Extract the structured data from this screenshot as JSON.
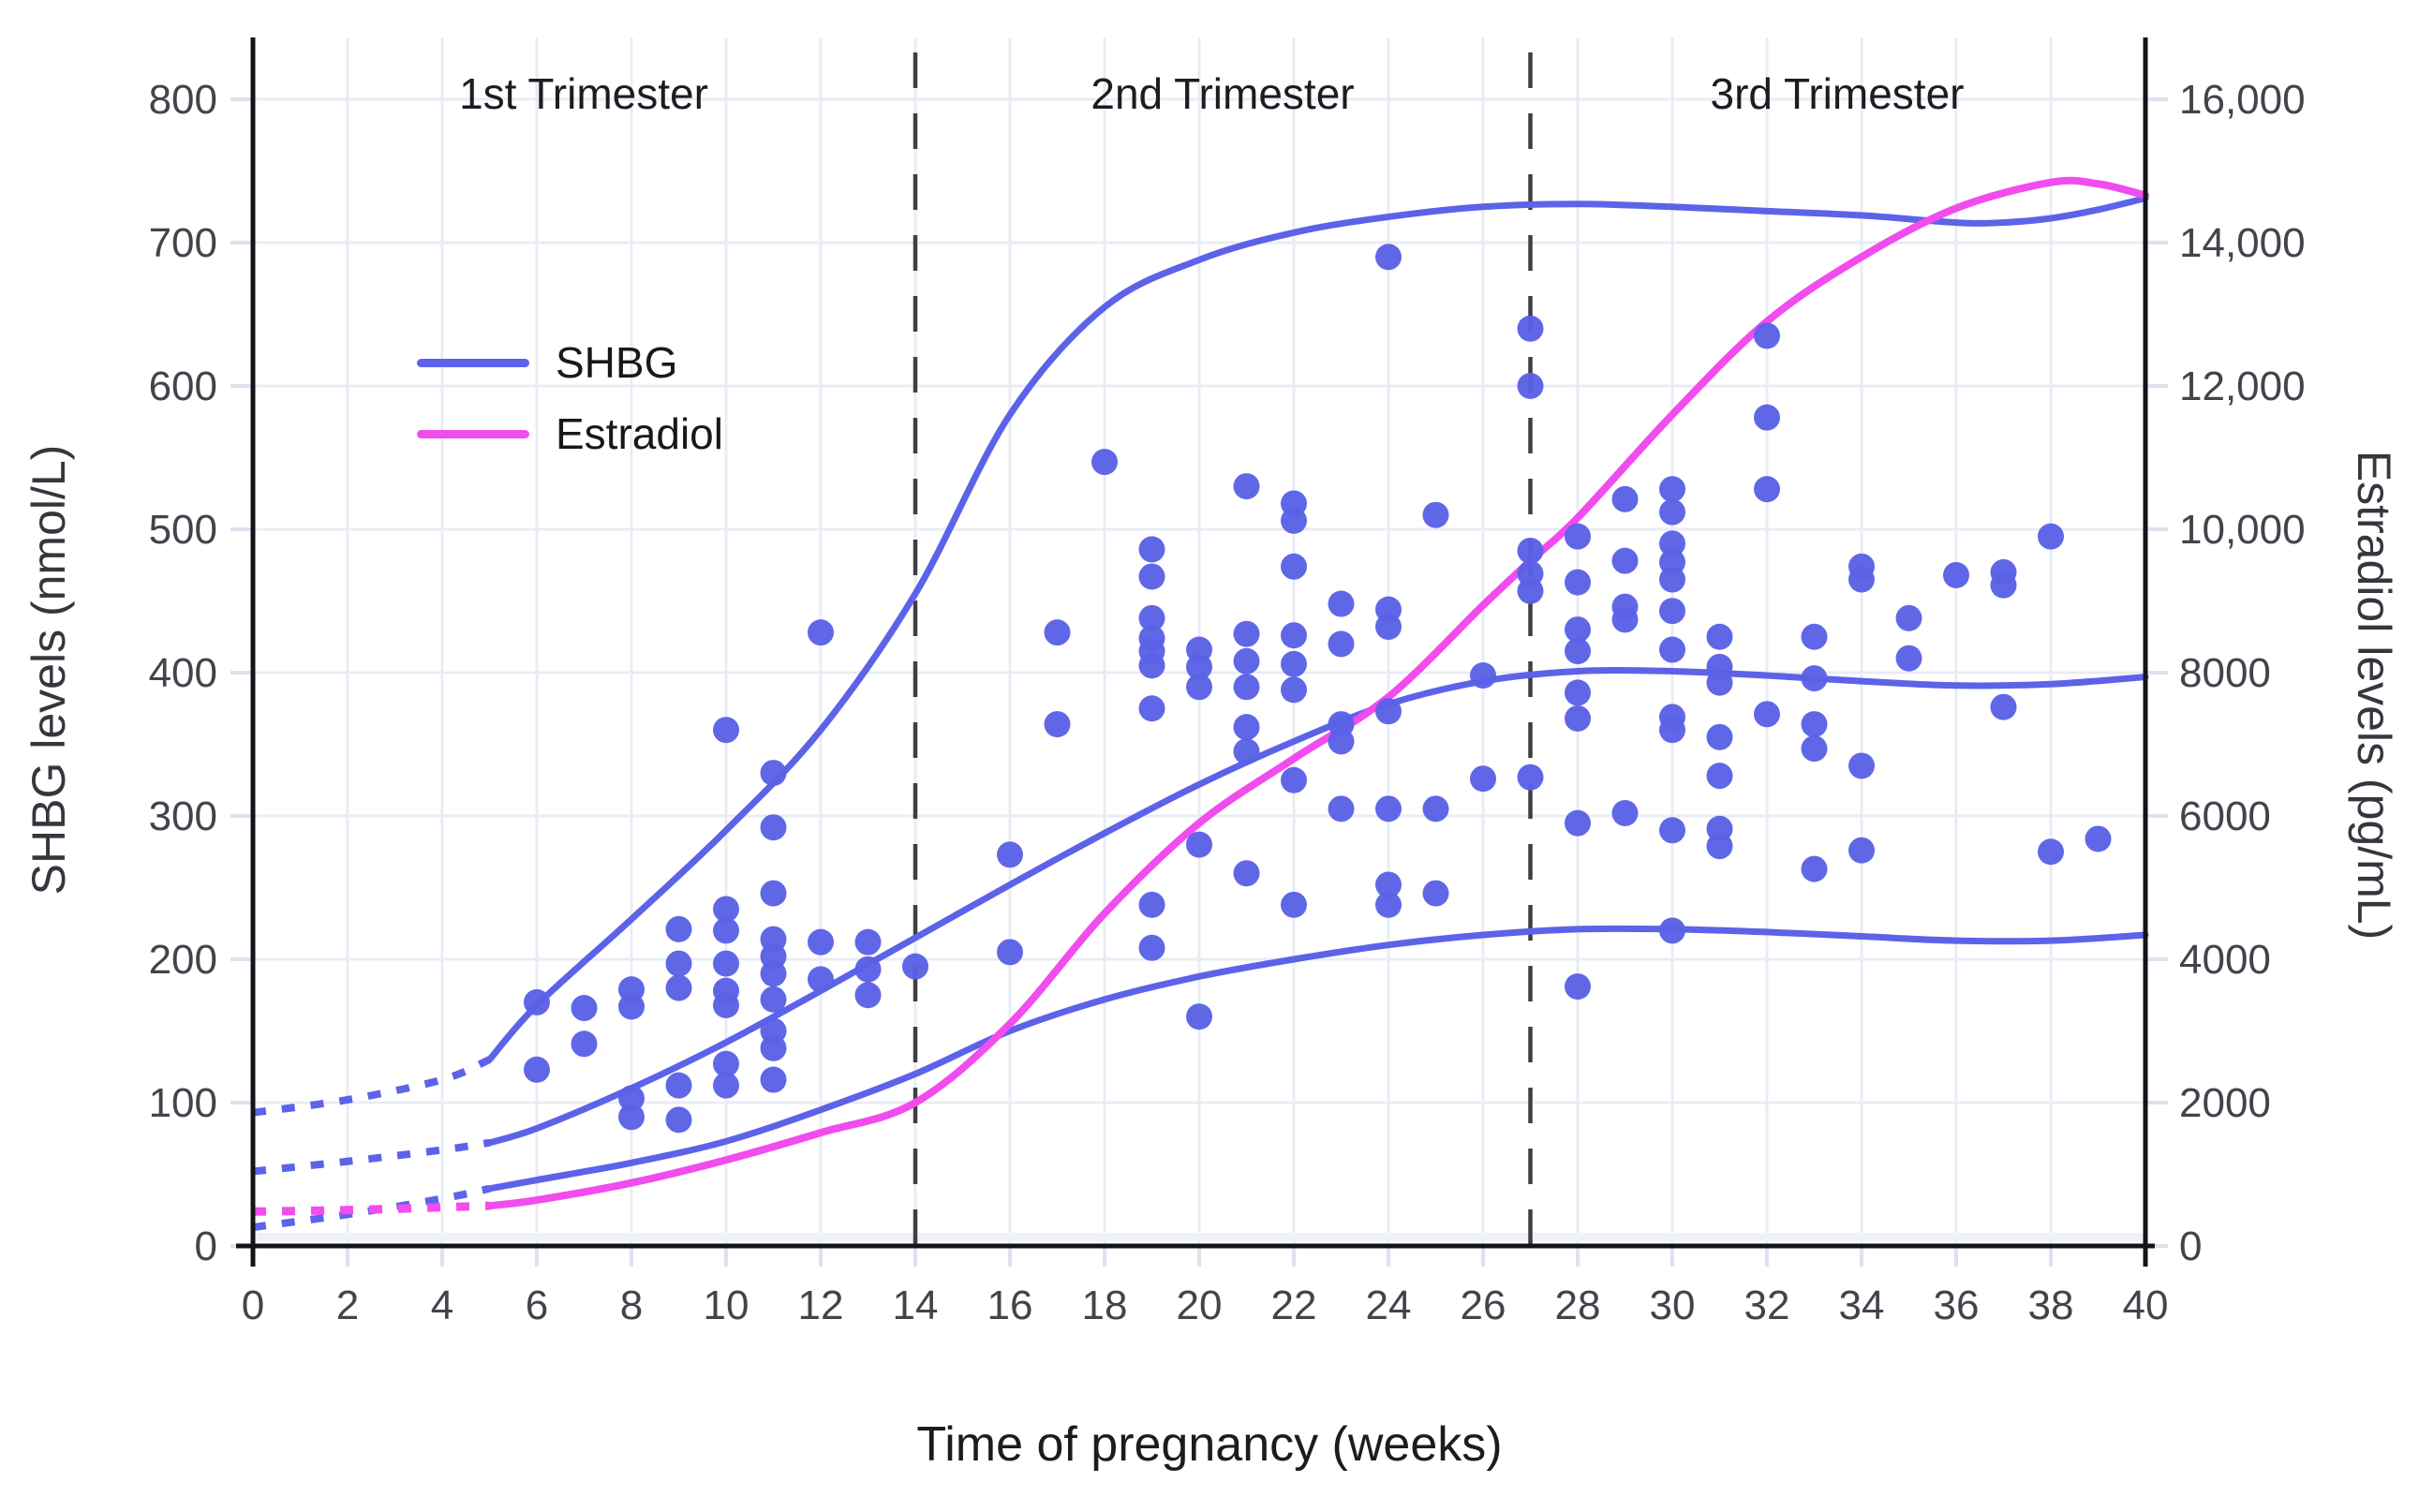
{
  "figure": {
    "title": "Time of pregnancy (weeks)",
    "trimester_labels": [
      {
        "label": "1st Trimester",
        "center_week": 7
      },
      {
        "label": "2nd Trimester",
        "center_week": 20.5
      },
      {
        "label": "3rd Trimester",
        "center_week": 33.5
      }
    ],
    "divider_weeks": [
      14,
      27
    ]
  },
  "legend": {
    "items": [
      {
        "label": "SHBG",
        "color": "#5c63e8"
      },
      {
        "label": "Estradiol",
        "color": "#f14cee"
      }
    ]
  },
  "axes": {
    "x": {
      "label": "Time of pregnancy (weeks)",
      "min": 0,
      "max": 40,
      "tick_step": 2,
      "ticks": [
        0,
        2,
        4,
        6,
        8,
        10,
        12,
        14,
        16,
        18,
        20,
        22,
        24,
        26,
        28,
        30,
        32,
        34,
        36,
        38,
        40
      ]
    },
    "y_left": {
      "label": "SHBG levels (nmol/L)",
      "min": 0,
      "max": 800,
      "ticks": [
        {
          "v": 0,
          "t": "0"
        },
        {
          "v": 100,
          "t": "100"
        },
        {
          "v": 200,
          "t": "200"
        },
        {
          "v": 300,
          "t": "300"
        },
        {
          "v": 400,
          "t": "400"
        },
        {
          "v": 500,
          "t": "500"
        },
        {
          "v": 600,
          "t": "600"
        },
        {
          "v": 700,
          "t": "700"
        },
        {
          "v": 800,
          "t": "800"
        }
      ]
    },
    "y_right": {
      "label": "Estradiol levels (pg/mL)",
      "min": 0,
      "max": 16000,
      "ticks": [
        {
          "v": 0,
          "t": "0"
        },
        {
          "v": 2000,
          "t": "2000"
        },
        {
          "v": 4000,
          "t": "4000"
        },
        {
          "v": 6000,
          "t": "6000"
        },
        {
          "v": 8000,
          "t": "8000"
        },
        {
          "v": 10000,
          "t": "10,000"
        },
        {
          "v": 12000,
          "t": "12,000"
        },
        {
          "v": 14000,
          "t": "14,000"
        },
        {
          "v": 16000,
          "t": "16,000"
        }
      ]
    }
  },
  "style": {
    "grid_color": "#e9ecf6",
    "tick_stub_color": "#dde2f0",
    "zero_band_color": "#eef1f8",
    "axis_color": "#121419",
    "divider_color": "#3f3f41",
    "tick_text_color": "#41444b",
    "blue": "#5c63e8",
    "pink": "#f14cee"
  },
  "chart_data": {
    "type": "scatter+line",
    "x_unit": "weeks of pregnancy",
    "note": "lines dotted (projected) from week 0 to week 5",
    "series": [
      {
        "name": "SHBG upper reference curve",
        "type": "line",
        "axis": "left",
        "color": "#5c63e8",
        "width": 7,
        "dotted_until_week": 5,
        "points": [
          [
            0,
            93
          ],
          [
            2,
            102
          ],
          [
            4,
            116
          ],
          [
            5,
            130
          ],
          [
            6,
            168
          ],
          [
            8,
            228
          ],
          [
            10,
            290
          ],
          [
            12,
            360
          ],
          [
            14,
            455
          ],
          [
            16,
            580
          ],
          [
            18,
            655
          ],
          [
            20,
            688
          ],
          [
            22,
            707
          ],
          [
            24,
            718
          ],
          [
            26,
            725
          ],
          [
            28,
            727
          ],
          [
            30,
            725
          ],
          [
            32,
            722
          ],
          [
            34,
            719
          ],
          [
            36,
            714
          ],
          [
            37,
            714
          ],
          [
            38,
            717
          ],
          [
            39,
            723
          ],
          [
            40,
            731
          ]
        ]
      },
      {
        "name": "SHBG median curve",
        "type": "line",
        "axis": "left",
        "color": "#5c63e8",
        "width": 7,
        "dotted_until_week": 5,
        "points": [
          [
            0,
            52
          ],
          [
            2,
            59
          ],
          [
            4,
            67
          ],
          [
            5,
            72
          ],
          [
            6,
            82
          ],
          [
            8,
            110
          ],
          [
            10,
            142
          ],
          [
            12,
            178
          ],
          [
            14,
            215
          ],
          [
            16,
            252
          ],
          [
            18,
            288
          ],
          [
            20,
            322
          ],
          [
            22,
            352
          ],
          [
            24,
            378
          ],
          [
            26,
            394
          ],
          [
            28,
            401
          ],
          [
            30,
            401
          ],
          [
            32,
            398
          ],
          [
            34,
            394
          ],
          [
            36,
            391
          ],
          [
            38,
            392
          ],
          [
            40,
            397
          ]
        ]
      },
      {
        "name": "SHBG lower reference curve",
        "type": "line",
        "axis": "left",
        "color": "#5c63e8",
        "width": 7,
        "dotted_until_week": 5,
        "points": [
          [
            0,
            13
          ],
          [
            2,
            22
          ],
          [
            4,
            33
          ],
          [
            5,
            40
          ],
          [
            6,
            46
          ],
          [
            8,
            58
          ],
          [
            10,
            73
          ],
          [
            12,
            95
          ],
          [
            14,
            120
          ],
          [
            16,
            150
          ],
          [
            18,
            172
          ],
          [
            20,
            188
          ],
          [
            22,
            200
          ],
          [
            24,
            210
          ],
          [
            26,
            217
          ],
          [
            28,
            221
          ],
          [
            30,
            221
          ],
          [
            32,
            219
          ],
          [
            34,
            216
          ],
          [
            36,
            213
          ],
          [
            38,
            213
          ],
          [
            40,
            217
          ]
        ]
      },
      {
        "name": "Estradiol",
        "type": "line",
        "axis": "right",
        "color": "#f14cee",
        "width": 8,
        "dotted_until_week": 5,
        "points": [
          [
            0,
            480
          ],
          [
            2,
            500
          ],
          [
            4,
            540
          ],
          [
            5,
            560
          ],
          [
            6,
            640
          ],
          [
            8,
            880
          ],
          [
            10,
            1200
          ],
          [
            12,
            1580
          ],
          [
            14,
            2000
          ],
          [
            16,
            3100
          ],
          [
            18,
            4640
          ],
          [
            20,
            5900
          ],
          [
            22,
            6800
          ],
          [
            24,
            7660
          ],
          [
            26,
            8940
          ],
          [
            27,
            9560
          ],
          [
            28,
            10160
          ],
          [
            30,
            11600
          ],
          [
            32,
            12900
          ],
          [
            34,
            13800
          ],
          [
            36,
            14480
          ],
          [
            38,
            14840
          ],
          [
            39,
            14820
          ],
          [
            40,
            14660
          ]
        ]
      },
      {
        "name": "SHBG observations",
        "type": "scatter",
        "axis": "left",
        "color": "#5a61e6",
        "radius": 14,
        "points": [
          [
            6,
            170
          ],
          [
            6,
            123
          ],
          [
            7,
            166
          ],
          [
            7,
            141
          ],
          [
            8,
            179
          ],
          [
            8,
            167
          ],
          [
            8,
            103
          ],
          [
            8,
            90
          ],
          [
            9,
            221
          ],
          [
            9,
            197
          ],
          [
            9,
            180
          ],
          [
            9,
            112
          ],
          [
            9,
            88
          ],
          [
            10,
            360
          ],
          [
            10,
            235
          ],
          [
            10,
            220
          ],
          [
            10,
            197
          ],
          [
            10,
            178
          ],
          [
            10,
            168
          ],
          [
            10,
            127
          ],
          [
            10,
            112
          ],
          [
            11,
            330
          ],
          [
            11,
            292
          ],
          [
            11,
            246
          ],
          [
            11,
            214
          ],
          [
            11,
            202
          ],
          [
            11,
            190
          ],
          [
            11,
            172
          ],
          [
            11,
            150
          ],
          [
            11,
            138
          ],
          [
            11,
            116
          ],
          [
            12,
            428
          ],
          [
            12,
            212
          ],
          [
            12,
            186
          ],
          [
            13,
            212
          ],
          [
            13,
            193
          ],
          [
            13,
            175
          ],
          [
            14,
            195
          ],
          [
            16,
            273
          ],
          [
            16,
            205
          ],
          [
            17,
            428
          ],
          [
            17,
            364
          ],
          [
            18,
            547
          ],
          [
            19,
            486
          ],
          [
            19,
            467
          ],
          [
            19,
            438
          ],
          [
            19,
            424
          ],
          [
            19,
            415
          ],
          [
            19,
            405
          ],
          [
            19,
            375
          ],
          [
            19,
            238
          ],
          [
            19,
            208
          ],
          [
            20,
            416
          ],
          [
            20,
            404
          ],
          [
            20,
            390
          ],
          [
            20,
            280
          ],
          [
            20,
            160
          ],
          [
            21,
            530
          ],
          [
            21,
            427
          ],
          [
            21,
            408
          ],
          [
            21,
            390
          ],
          [
            21,
            362
          ],
          [
            21,
            345
          ],
          [
            21,
            260
          ],
          [
            22,
            518
          ],
          [
            22,
            506
          ],
          [
            22,
            474
          ],
          [
            22,
            426
          ],
          [
            22,
            406
          ],
          [
            22,
            388
          ],
          [
            22,
            325
          ],
          [
            22,
            238
          ],
          [
            23,
            448
          ],
          [
            23,
            420
          ],
          [
            23,
            364
          ],
          [
            23,
            352
          ],
          [
            23,
            305
          ],
          [
            24,
            690
          ],
          [
            24,
            444
          ],
          [
            24,
            432
          ],
          [
            24,
            373
          ],
          [
            24,
            305
          ],
          [
            24,
            252
          ],
          [
            24,
            238
          ],
          [
            25,
            510
          ],
          [
            25,
            305
          ],
          [
            25,
            246
          ],
          [
            26,
            398
          ],
          [
            26,
            326
          ],
          [
            27,
            640
          ],
          [
            27,
            600
          ],
          [
            27,
            485
          ],
          [
            27,
            469
          ],
          [
            27,
            457
          ],
          [
            27,
            327
          ],
          [
            28,
            495
          ],
          [
            28,
            463
          ],
          [
            28,
            430
          ],
          [
            28,
            415
          ],
          [
            28,
            386
          ],
          [
            28,
            368
          ],
          [
            28,
            295
          ],
          [
            28,
            181
          ],
          [
            29,
            521
          ],
          [
            29,
            478
          ],
          [
            29,
            446
          ],
          [
            29,
            437
          ],
          [
            29,
            302
          ],
          [
            30,
            528
          ],
          [
            30,
            512
          ],
          [
            30,
            490
          ],
          [
            30,
            477
          ],
          [
            30,
            465
          ],
          [
            30,
            443
          ],
          [
            30,
            416
          ],
          [
            30,
            369
          ],
          [
            30,
            360
          ],
          [
            30,
            290
          ],
          [
            30,
            220
          ],
          [
            31,
            425
          ],
          [
            31,
            404
          ],
          [
            31,
            393
          ],
          [
            31,
            355
          ],
          [
            31,
            328
          ],
          [
            31,
            291
          ],
          [
            31,
            279
          ],
          [
            32,
            635
          ],
          [
            32,
            578
          ],
          [
            32,
            528
          ],
          [
            32,
            371
          ],
          [
            33,
            425
          ],
          [
            33,
            396
          ],
          [
            33,
            364
          ],
          [
            33,
            347
          ],
          [
            33,
            263
          ],
          [
            34,
            474
          ],
          [
            34,
            465
          ],
          [
            34,
            335
          ],
          [
            34,
            276
          ],
          [
            35,
            438
          ],
          [
            35,
            410
          ],
          [
            36,
            468
          ],
          [
            37,
            470
          ],
          [
            37,
            461
          ],
          [
            37,
            376
          ],
          [
            38,
            495
          ],
          [
            38,
            275
          ],
          [
            39,
            284
          ]
        ]
      }
    ]
  }
}
